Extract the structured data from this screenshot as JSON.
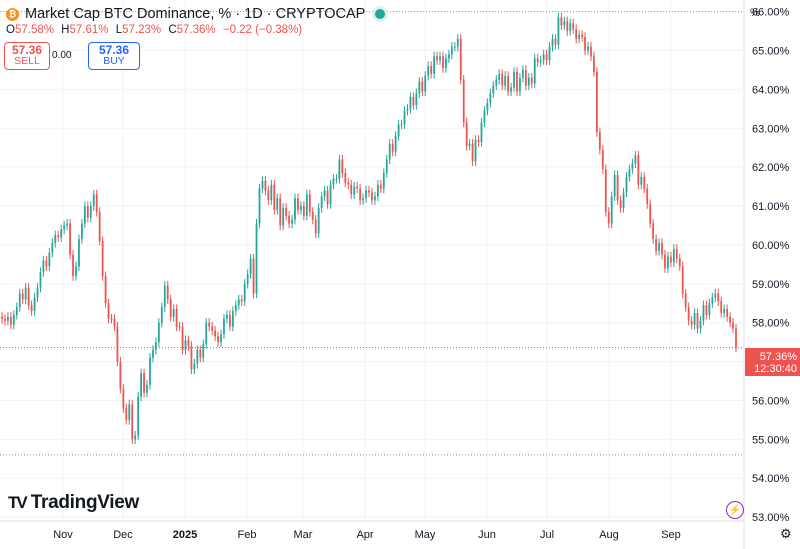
{
  "header": {
    "coin_glyph": "₿",
    "title": "Market Cap BTC Dominance, % · 1D · CRYPTOCAP",
    "ohlc": {
      "o_label": "O",
      "o": "57.58%",
      "h_label": "H",
      "h": "57.61%",
      "l_label": "L",
      "l": "57.23%",
      "c_label": "C",
      "c": "57.36%",
      "change": "−0.22 (−0.38%)"
    }
  },
  "trade": {
    "sell_price": "57.36",
    "sell_label": "SELL",
    "spread": "0.00",
    "buy_price": "57.36",
    "buy_label": "BUY"
  },
  "axis": {
    "unit_label": "%"
  },
  "branding": {
    "logo_mark": "TV",
    "logo_text": "TradingView"
  },
  "price_label": {
    "value": "57.36%",
    "countdown": "12:30:40"
  },
  "colors": {
    "up": "#26a69a",
    "down": "#ef5350",
    "grid": "#f0f3fa",
    "text": "#131722"
  },
  "chart_data": {
    "type": "candlestick",
    "title": "Market Cap BTC Dominance, % · 1D · CRYPTOCAP",
    "ylim": [
      52.9,
      66.3
    ],
    "y_ticks": [
      66,
      65,
      64,
      63,
      62,
      61,
      60,
      59,
      58,
      57,
      56,
      55,
      54,
      53
    ],
    "y_tick_labels": [
      "66.00%",
      "65.00%",
      "64.00%",
      "63.00%",
      "62.00%",
      "61.00%",
      "60.00%",
      "59.00%",
      "58.00%",
      "57.00%",
      "56.00%",
      "55.00%",
      "54.00%",
      "53.00%"
    ],
    "x_range": [
      0,
      337
    ],
    "x_ticks": [
      {
        "day": 55,
        "label": "Nov"
      },
      {
        "day": 85,
        "label": "Dec"
      },
      {
        "day": 116,
        "label": "2025",
        "bold": true
      },
      {
        "day": 147,
        "label": "Feb"
      },
      {
        "day": 175,
        "label": "Mar"
      },
      {
        "day": 206,
        "label": "Apr"
      },
      {
        "day": 236,
        "label": "May"
      },
      {
        "day": 267,
        "label": "Jun"
      },
      {
        "day": 297,
        "label": "Jul"
      },
      {
        "day": 328,
        "label": "Aug"
      },
      {
        "day": 359,
        "label": "Sep"
      }
    ],
    "reference_lines": {
      "high": 66.0,
      "low": 54.6,
      "last": 57.36
    },
    "closes": [
      58.1,
      58.05,
      58.15,
      57.95,
      58.2,
      58.4,
      58.75,
      58.6,
      58.9,
      58.45,
      58.3,
      58.65,
      58.9,
      59.3,
      59.6,
      59.45,
      59.8,
      60.05,
      60.25,
      60.2,
      60.4,
      60.5,
      60.55,
      59.75,
      59.2,
      59.45,
      60.15,
      60.55,
      61.0,
      60.7,
      61.0,
      61.3,
      60.85,
      60.1,
      59.2,
      58.5,
      58.1,
      58.1,
      57.9,
      57.0,
      56.3,
      55.8,
      55.5,
      55.9,
      55.0,
      55.1,
      56.1,
      56.7,
      56.2,
      56.4,
      57.1,
      57.3,
      57.5,
      58.0,
      58.4,
      58.95,
      58.6,
      58.15,
      58.35,
      57.9,
      57.9,
      57.3,
      57.55,
      57.4,
      56.8,
      56.95,
      57.3,
      57.1,
      57.45,
      58.0,
      57.9,
      57.8,
      57.65,
      57.5,
      57.7,
      58.1,
      58.2,
      57.9,
      58.3,
      58.45,
      58.6,
      58.55,
      59.0,
      59.25,
      59.65,
      58.75,
      60.55,
      61.45,
      61.65,
      61.4,
      61.15,
      61.55,
      60.9,
      61.2,
      60.5,
      60.95,
      60.75,
      60.55,
      60.65,
      61.2,
      60.9,
      61.0,
      60.75,
      61.3,
      60.85,
      60.65,
      60.3,
      60.95,
      61.25,
      61.4,
      61.05,
      61.55,
      61.7,
      61.7,
      62.2,
      61.85,
      61.6,
      61.55,
      61.3,
      61.5,
      61.45,
      61.15,
      61.2,
      61.4,
      61.35,
      61.15,
      61.25,
      61.55,
      61.45,
      61.85,
      62.2,
      62.6,
      62.4,
      62.8,
      63.1,
      63.1,
      63.45,
      63.5,
      63.8,
      63.6,
      63.9,
      64.2,
      63.95,
      64.35,
      64.6,
      64.4,
      64.85,
      64.75,
      64.85,
      64.55,
      64.8,
      64.9,
      65.1,
      65.1,
      65.3,
      64.25,
      63.15,
      62.55,
      62.6,
      62.15,
      62.7,
      62.65,
      63.15,
      63.45,
      63.65,
      63.9,
      64.1,
      64.25,
      64.4,
      64.1,
      64.35,
      63.95,
      64.05,
      64.45,
      63.95,
      64.3,
      64.5,
      64.1,
      64.3,
      64.15,
      64.8,
      64.7,
      64.75,
      64.9,
      64.75,
      65.1,
      65.3,
      65.15,
      65.85,
      65.65,
      65.75,
      65.5,
      65.7,
      65.55,
      65.3,
      65.4,
      65.35,
      65.0,
      65.1,
      64.85,
      64.45,
      62.9,
      62.45,
      61.95,
      60.85,
      60.55,
      61.25,
      61.8,
      61.15,
      60.95,
      61.35,
      61.75,
      61.95,
      62.1,
      62.3,
      61.55,
      61.75,
      61.45,
      61.05,
      60.55,
      60.15,
      59.85,
      60.05,
      59.75,
      59.4,
      59.7,
      59.55,
      59.9,
      59.65,
      59.45,
      58.75,
      58.4,
      58.05,
      57.95,
      58.25,
      57.85,
      58.05,
      58.45,
      58.2,
      58.5,
      58.65,
      58.75,
      58.55,
      58.25,
      58.35,
      58.15,
      58.0,
      57.85,
      57.36
    ]
  }
}
